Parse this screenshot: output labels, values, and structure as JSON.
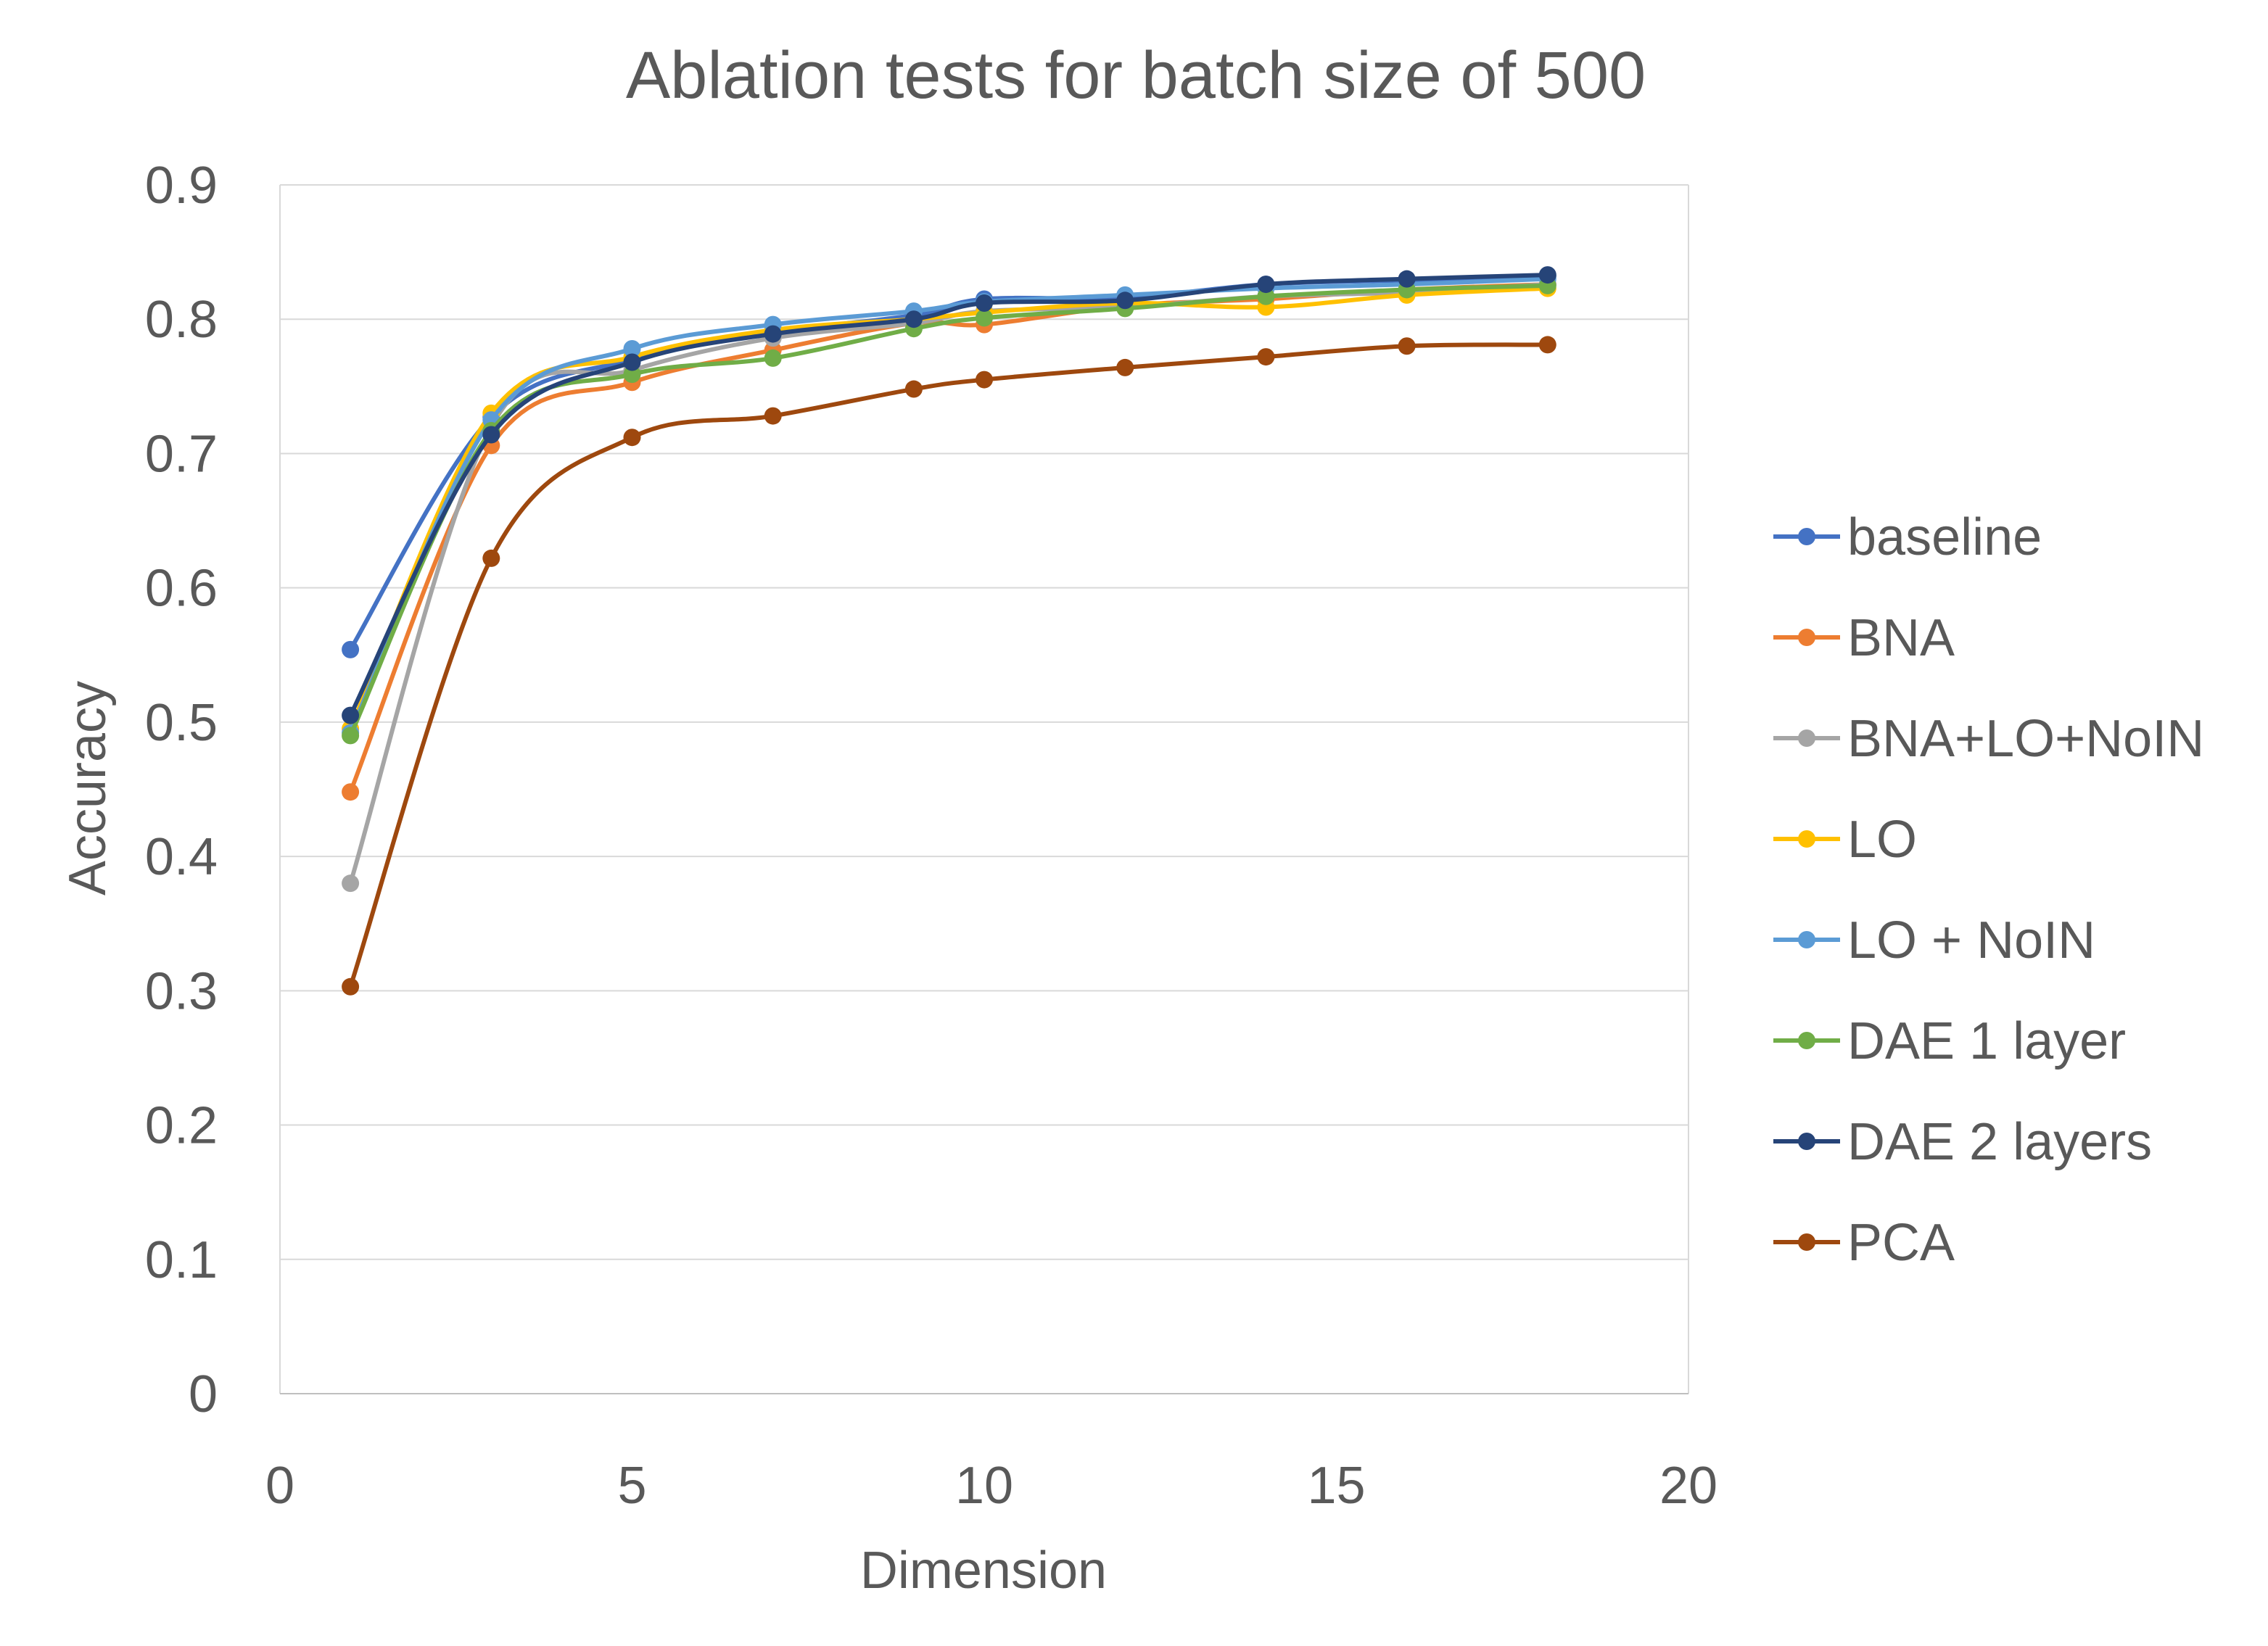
{
  "chart_data": {
    "type": "line",
    "title": "Ablation tests for batch size of 500",
    "xlabel": "Dimension",
    "ylabel": "Accuracy",
    "xlim": [
      0,
      20
    ],
    "ylim": [
      0,
      0.9
    ],
    "xticks": [
      "0",
      "5",
      "10",
      "15",
      "20"
    ],
    "yticks": [
      "0",
      "0.1",
      "0.2",
      "0.3",
      "0.4",
      "0.5",
      "0.6",
      "0.7",
      "0.8",
      "0.9"
    ],
    "grid": "horizontal",
    "legend_position": "right",
    "x": [
      1,
      3,
      5,
      7,
      9,
      10,
      12,
      14,
      16,
      18
    ],
    "series": [
      {
        "name": "baseline",
        "color": "#4472C4",
        "values": [
          0.554,
          0.727,
          0.77,
          0.79,
          0.803,
          0.815,
          0.816,
          0.826,
          0.829,
          0.832
        ]
      },
      {
        "name": "BNA",
        "color": "#ED7D31",
        "values": [
          0.448,
          0.706,
          0.753,
          0.777,
          0.797,
          0.796,
          0.81,
          0.815,
          0.822,
          0.826
        ]
      },
      {
        "name": "BNA+LO+NoIN",
        "color": "#A5A5A5",
        "values": [
          0.38,
          0.72,
          0.762,
          0.786,
          0.797,
          0.806,
          0.809,
          0.817,
          0.82,
          0.826
        ]
      },
      {
        "name": "LO",
        "color": "#FFC000",
        "values": [
          0.495,
          0.73,
          0.772,
          0.792,
          0.8,
          0.805,
          0.812,
          0.809,
          0.818,
          0.823
        ]
      },
      {
        "name": "LO + NoIN",
        "color": "#5B9BD5",
        "values": [
          0.492,
          0.725,
          0.778,
          0.796,
          0.806,
          0.813,
          0.818,
          0.823,
          0.826,
          0.83
        ]
      },
      {
        "name": "DAE 1 layer",
        "color": "#70AD47",
        "values": [
          0.49,
          0.717,
          0.759,
          0.771,
          0.793,
          0.801,
          0.808,
          0.817,
          0.822,
          0.825
        ]
      },
      {
        "name": "DAE 2 layers",
        "color": "#264478",
        "values": [
          0.505,
          0.714,
          0.768,
          0.789,
          0.8,
          0.812,
          0.814,
          0.826,
          0.83,
          0.833
        ]
      },
      {
        "name": "PCA",
        "color": "#9E480E",
        "values": [
          0.303,
          0.622,
          0.712,
          0.728,
          0.748,
          0.755,
          0.764,
          0.772,
          0.78,
          0.781
        ]
      }
    ]
  }
}
